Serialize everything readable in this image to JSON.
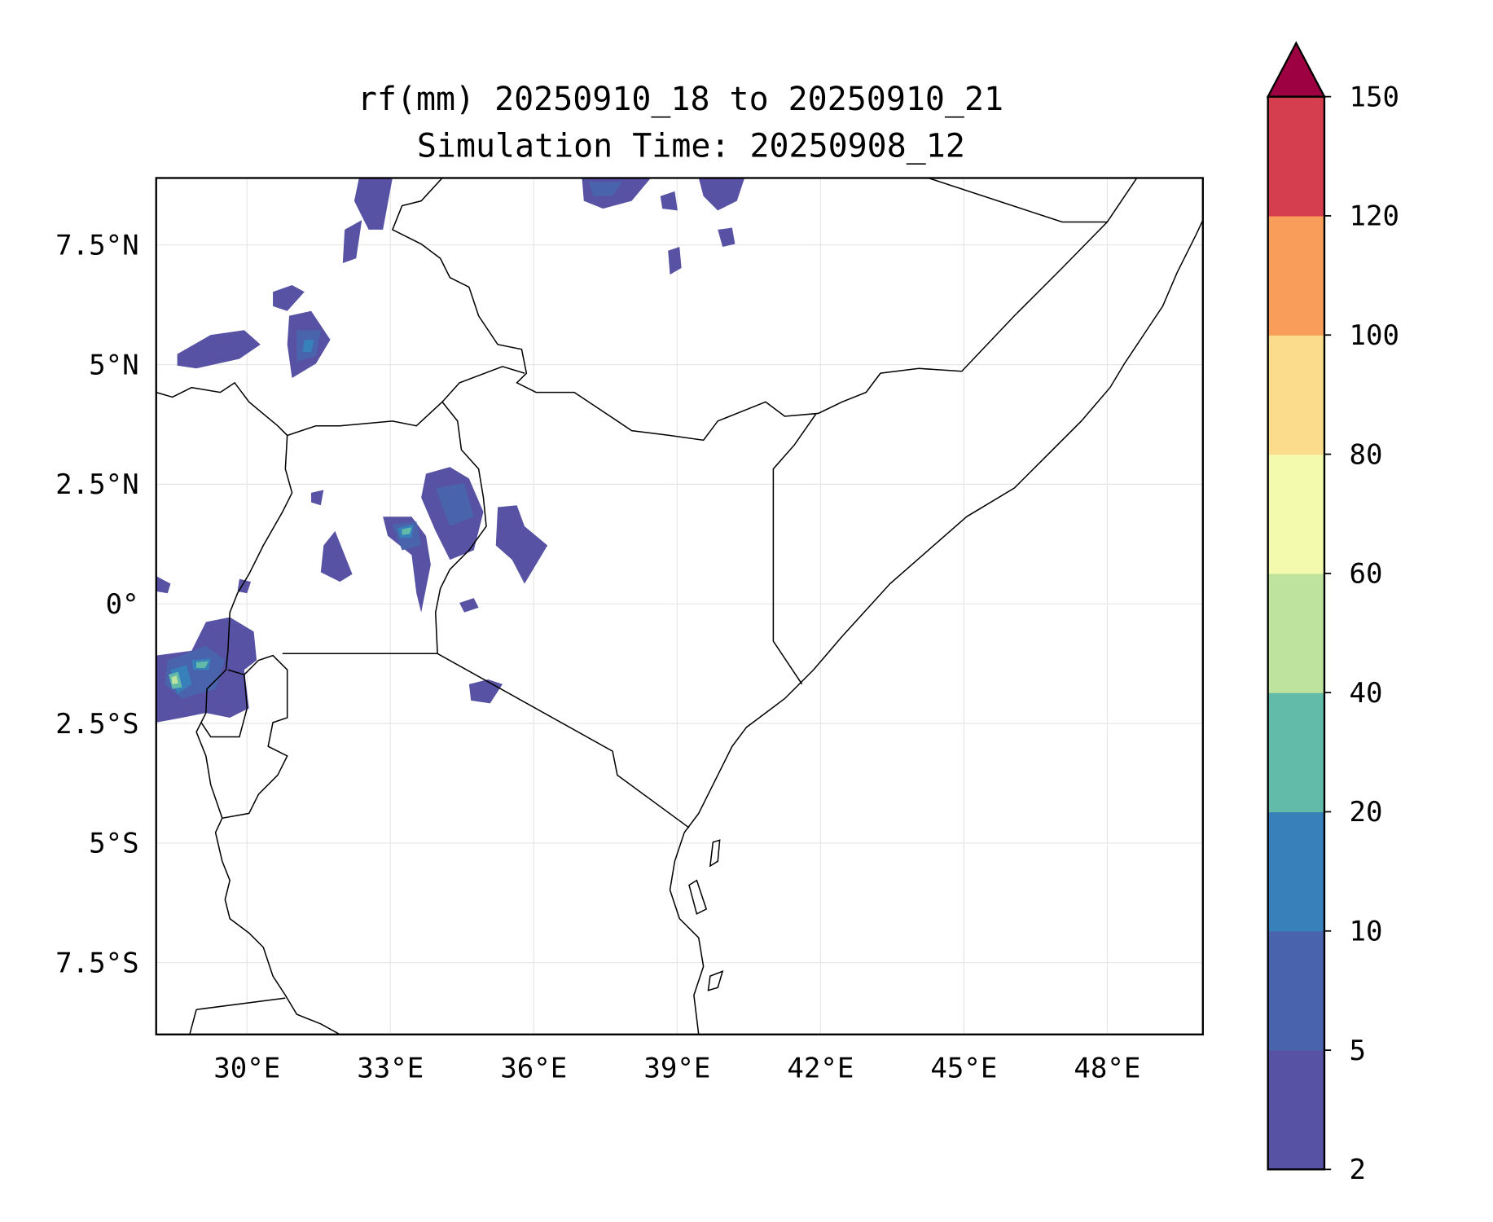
{
  "chart_data": {
    "type": "heatmap",
    "title": "rf(mm) 20250910_18 to 20250910_21",
    "subtitle": "Simulation Time: 20250908_12",
    "xlabel": "",
    "ylabel": "",
    "xlim": [
      28.1,
      50.0
    ],
    "ylim": [
      -9.0,
      8.9
    ],
    "x_ticks": [
      30,
      33,
      36,
      39,
      42,
      45,
      48
    ],
    "x_tick_labels": [
      "30°E",
      "33°E",
      "36°E",
      "39°E",
      "42°E",
      "45°E",
      "48°E"
    ],
    "y_ticks": [
      7.5,
      5,
      2.5,
      0,
      -2.5,
      -5,
      -7.5
    ],
    "y_tick_labels": [
      "7.5°N",
      "5°N",
      "2.5°N",
      "0°",
      "2.5°S",
      "5°S",
      "7.5°S"
    ],
    "grid": true,
    "colorbar": {
      "levels": [
        2,
        5,
        10,
        20,
        40,
        60,
        80,
        100,
        120,
        150
      ],
      "tick_labels": [
        "2",
        "5",
        "10",
        "20",
        "40",
        "60",
        "80",
        "100",
        "120",
        "150"
      ],
      "colors": [
        "#5752a3",
        "#4a63ad",
        "#3880b9",
        "#62bba9",
        "#bde39f",
        "#f3f9ad",
        "#fbdc8d",
        "#f99d5a",
        "#d53e4f"
      ],
      "extend_color": "#9e0142",
      "extend": "max",
      "placement": "right"
    }
  }
}
